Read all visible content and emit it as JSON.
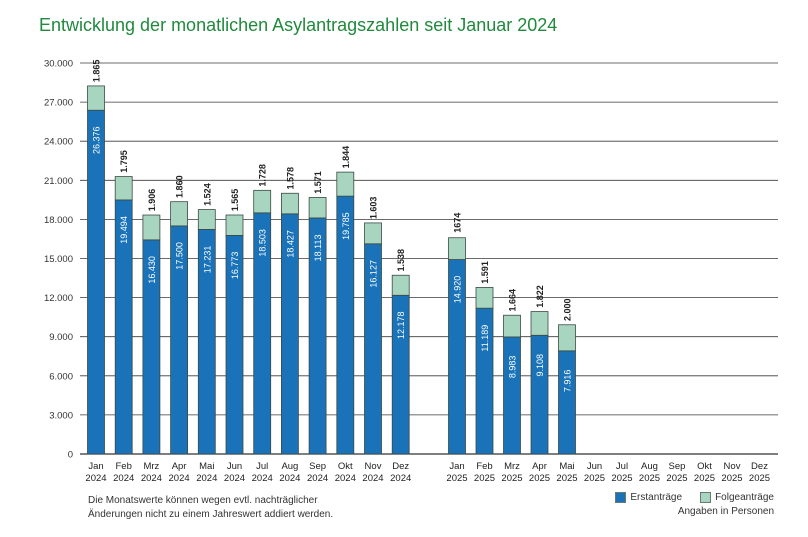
{
  "chart_data": {
    "type": "bar",
    "stacked": true,
    "title": "Entwicklung der monatlichen Asylantragszahlen seit Januar 2024",
    "categories": [
      {
        "month": "Jan",
        "year": "2024"
      },
      {
        "month": "Feb",
        "year": "2024"
      },
      {
        "month": "Mrz",
        "year": "2024"
      },
      {
        "month": "Apr",
        "year": "2024"
      },
      {
        "month": "Mai",
        "year": "2024"
      },
      {
        "month": "Jun",
        "year": "2024"
      },
      {
        "month": "Jul",
        "year": "2024"
      },
      {
        "month": "Aug",
        "year": "2024"
      },
      {
        "month": "Sep",
        "year": "2024"
      },
      {
        "month": "Okt",
        "year": "2024"
      },
      {
        "month": "Nov",
        "year": "2024"
      },
      {
        "month": "Dez",
        "year": "2024"
      },
      {
        "month": "Jan",
        "year": "2025"
      },
      {
        "month": "Feb",
        "year": "2025"
      },
      {
        "month": "Mrz",
        "year": "2025"
      },
      {
        "month": "Apr",
        "year": "2025"
      },
      {
        "month": "Mai",
        "year": "2025"
      },
      {
        "month": "Jun",
        "year": "2025"
      },
      {
        "month": "Jul",
        "year": "2025"
      },
      {
        "month": "Aug",
        "year": "2025"
      },
      {
        "month": "Sep",
        "year": "2025"
      },
      {
        "month": "Okt",
        "year": "2025"
      },
      {
        "month": "Nov",
        "year": "2025"
      },
      {
        "month": "Dez",
        "year": "2025"
      }
    ],
    "series": [
      {
        "name": "Erstanträge",
        "color": "#1a73b8",
        "values": [
          26376,
          19494,
          16430,
          17500,
          17231,
          16773,
          18503,
          18427,
          18113,
          19785,
          16127,
          12178,
          14920,
          11189,
          8983,
          9108,
          7916,
          null,
          null,
          null,
          null,
          null,
          null,
          null
        ],
        "labels": [
          "26.376",
          "19.494",
          "16.430",
          "17.500",
          "17.231",
          "16.773",
          "18.503",
          "18.427",
          "18.113",
          "19.785",
          "16.127",
          "12.178",
          "14.920",
          "11.189",
          "8.983",
          "9.108",
          "7.916",
          "",
          "",
          "",
          "",
          "",
          "",
          ""
        ]
      },
      {
        "name": "Folgeanträge",
        "color": "#a8d5bf",
        "values": [
          1865,
          1795,
          1906,
          1860,
          1524,
          1565,
          1728,
          1578,
          1571,
          1844,
          1603,
          1538,
          1674,
          1591,
          1664,
          1822,
          2000,
          null,
          null,
          null,
          null,
          null,
          null,
          null
        ],
        "labels": [
          "1.865",
          "1.795",
          "1.906",
          "1.860",
          "1.524",
          "1.565",
          "1.728",
          "1.578",
          "1.571",
          "1.844",
          "1.603",
          "1.538",
          "1674",
          "1.591",
          "1.664",
          "1.822",
          "2.000",
          "",
          "",
          "",
          "",
          "",
          "",
          ""
        ]
      }
    ],
    "yticks": [
      0,
      3000,
      6000,
      9000,
      12000,
      15000,
      18000,
      21000,
      24000,
      27000,
      30000
    ],
    "ytick_labels": [
      "0",
      "3.000",
      "6.000",
      "9.000",
      "12.000",
      "15.000",
      "18.000",
      "21.000",
      "24.000",
      "27.000",
      "30.000"
    ],
    "ylim": [
      0,
      30000
    ],
    "grid": true,
    "legend_position": "bottom-right"
  },
  "note_lines": [
    "Die Monatswerte können wegen evtl. nachträglicher",
    "Änderungen nicht zu einem Jahreswert addiert werden."
  ],
  "legend": {
    "items": [
      "Erstanträge",
      "Folgeanträge"
    ],
    "colors": [
      "#1a73b8",
      "#a8d5bf"
    ],
    "units": "Angaben in Personen"
  }
}
